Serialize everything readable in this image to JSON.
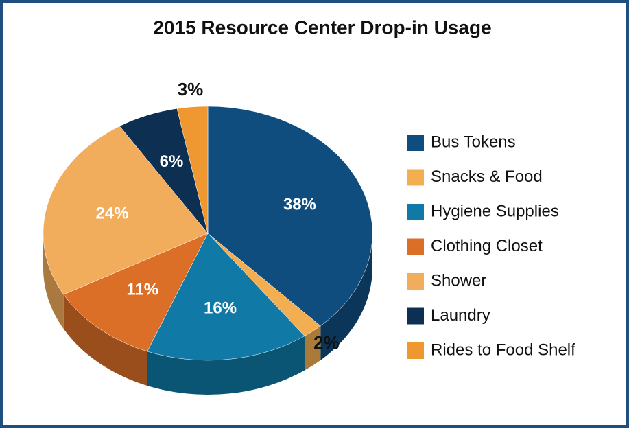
{
  "chart_data": {
    "type": "pie",
    "title": "2015 Resource Center Drop-in Usage",
    "categories": [
      "Bus Tokens",
      "Snacks & Food",
      "Hygiene Supplies",
      "Clothing Closet",
      "Shower",
      "Laundry",
      "Rides to Food Shelf"
    ],
    "values": [
      38,
      2,
      16,
      11,
      24,
      6,
      3
    ],
    "value_labels": [
      "38%",
      "2%",
      "16%",
      "11%",
      "24%",
      "6%",
      "3%"
    ],
    "colors": [
      "#0f4d7f",
      "#f4ae52",
      "#1079a6",
      "#dc6f27",
      "#f2ad5c",
      "#0d2f51",
      "#ef9831"
    ],
    "legend": "right"
  }
}
